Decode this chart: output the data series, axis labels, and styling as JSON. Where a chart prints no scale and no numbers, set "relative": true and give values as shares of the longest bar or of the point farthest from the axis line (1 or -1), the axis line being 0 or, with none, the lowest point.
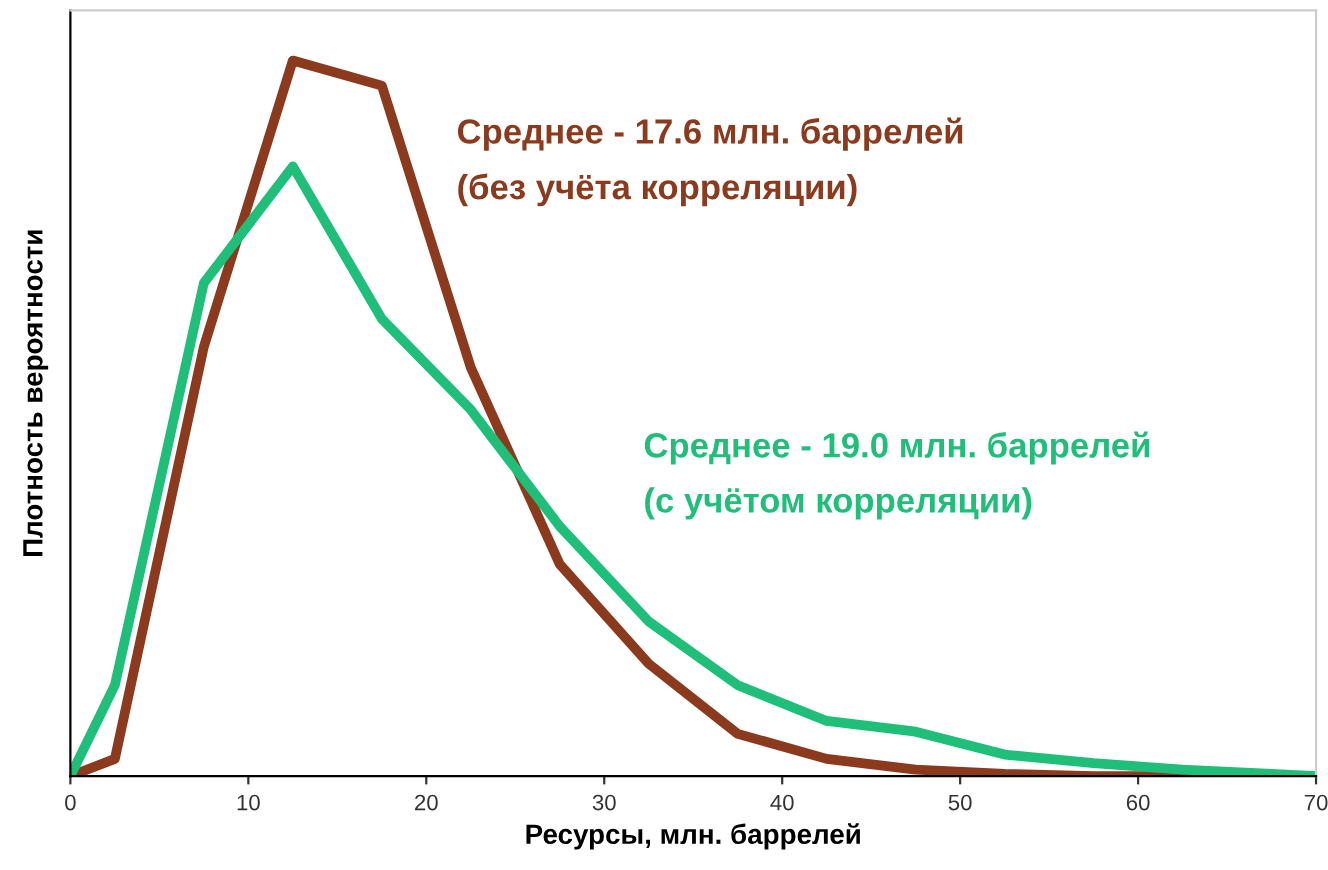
{
  "chart_data": {
    "type": "line",
    "relative": true,
    "xlabel": "Ресурсы, млн. баррелей",
    "ylabel": "Плотность вероятности",
    "x": [
      0,
      2.5,
      7.5,
      12.5,
      17.5,
      22.5,
      27.5,
      32.5,
      37.5,
      42.5,
      47.5,
      52.5,
      57.5,
      62.5,
      67.5,
      70
    ],
    "xlim": [
      0,
      70
    ],
    "xticks": [
      0,
      10,
      20,
      30,
      40,
      50,
      60,
      70
    ],
    "grid": false,
    "legend": false,
    "marker": "none",
    "line_style": "solid",
    "series": [
      {
        "name": "Среднее - 17.6 млн. баррелей\n(без учёта корреляции)",
        "color": "#8b3a1e",
        "values": [
          0,
          0.024,
          0.6,
          1,
          0.965,
          0.571,
          0.296,
          0.157,
          0.059,
          0.024,
          0.009,
          0.003,
          0,
          0,
          0,
          0
        ]
      },
      {
        "name": "Среднее - 19.0 млн. баррелей\n(с учётом корреляции)",
        "color": "#1fbf7a",
        "values": [
          0,
          0.127,
          0.689,
          0.852,
          0.639,
          0.512,
          0.349,
          0.216,
          0.127,
          0.077,
          0.062,
          0.03,
          0.018,
          0.009,
          0.003,
          0
        ]
      }
    ]
  }
}
